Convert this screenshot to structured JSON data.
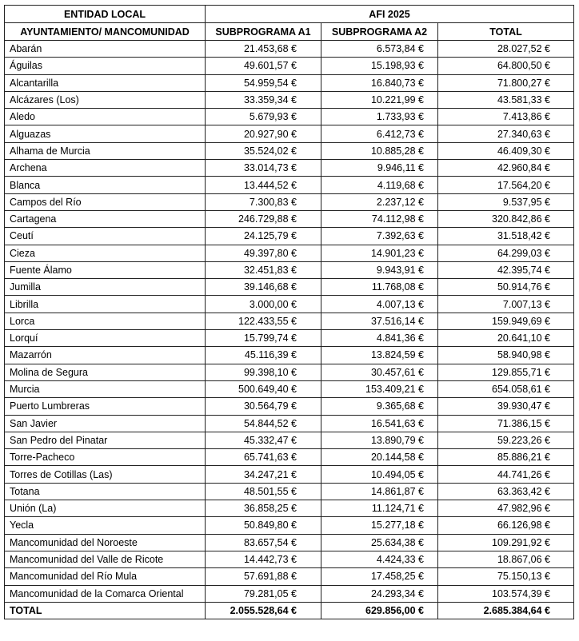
{
  "header": {
    "group_left": "ENTIDAD LOCAL",
    "group_right": "AFI 2025",
    "col_entity": "AYUNTAMIENTO/ MANCOMUNIDAD",
    "col_a1": "SUBPROGRAMA A1",
    "col_a2": "SUBPROGRAMA A2",
    "col_total": "TOTAL"
  },
  "rows": [
    {
      "name": "Abarán",
      "a1": "21.453,68 €",
      "a2": "6.573,84 €",
      "total": "28.027,52 €"
    },
    {
      "name": "Águilas",
      "a1": "49.601,57 €",
      "a2": "15.198,93 €",
      "total": "64.800,50 €"
    },
    {
      "name": "Alcantarilla",
      "a1": "54.959,54 €",
      "a2": "16.840,73 €",
      "total": "71.800,27 €"
    },
    {
      "name": "Alcázares (Los)",
      "a1": "33.359,34 €",
      "a2": "10.221,99 €",
      "total": "43.581,33 €"
    },
    {
      "name": "Aledo",
      "a1": "5.679,93 €",
      "a2": "1.733,93 €",
      "total": "7.413,86 €"
    },
    {
      "name": "Alguazas",
      "a1": "20.927,90 €",
      "a2": "6.412,73 €",
      "total": "27.340,63 €"
    },
    {
      "name": "Alhama de Murcia",
      "a1": "35.524,02 €",
      "a2": "10.885,28 €",
      "total": "46.409,30 €"
    },
    {
      "name": "Archena",
      "a1": "33.014,73 €",
      "a2": "9.946,11 €",
      "total": "42.960,84 €"
    },
    {
      "name": "Blanca",
      "a1": "13.444,52 €",
      "a2": "4.119,68 €",
      "total": "17.564,20 €"
    },
    {
      "name": "Campos del Río",
      "a1": "7.300,83 €",
      "a2": "2.237,12 €",
      "total": "9.537,95 €"
    },
    {
      "name": "Cartagena",
      "a1": "246.729,88 €",
      "a2": "74.112,98 €",
      "total": "320.842,86 €"
    },
    {
      "name": "Ceutí",
      "a1": "24.125,79 €",
      "a2": "7.392,63 €",
      "total": "31.518,42 €"
    },
    {
      "name": "Cieza",
      "a1": "49.397,80 €",
      "a2": "14.901,23 €",
      "total": "64.299,03 €"
    },
    {
      "name": "Fuente Álamo",
      "a1": "32.451,83 €",
      "a2": "9.943,91 €",
      "total": "42.395,74 €"
    },
    {
      "name": "Jumilla",
      "a1": "39.146,68 €",
      "a2": "11.768,08 €",
      "total": "50.914,76 €"
    },
    {
      "name": "Librilla",
      "a1": "3.000,00 €",
      "a2": "4.007,13 €",
      "total": "7.007,13 €"
    },
    {
      "name": "Lorca",
      "a1": "122.433,55 €",
      "a2": "37.516,14 €",
      "total": "159.949,69 €"
    },
    {
      "name": "Lorquí",
      "a1": "15.799,74 €",
      "a2": "4.841,36 €",
      "total": "20.641,10 €"
    },
    {
      "name": "Mazarrón",
      "a1": "45.116,39 €",
      "a2": "13.824,59 €",
      "total": "58.940,98 €"
    },
    {
      "name": "Molina de Segura",
      "a1": "99.398,10 €",
      "a2": "30.457,61 €",
      "total": "129.855,71 €"
    },
    {
      "name": "Murcia",
      "a1": "500.649,40 €",
      "a2": "153.409,21 €",
      "total": "654.058,61 €"
    },
    {
      "name": "Puerto Lumbreras",
      "a1": "30.564,79 €",
      "a2": "9.365,68 €",
      "total": "39.930,47 €"
    },
    {
      "name": "San Javier",
      "a1": "54.844,52 €",
      "a2": "16.541,63 €",
      "total": "71.386,15 €"
    },
    {
      "name": "San Pedro del Pinatar",
      "a1": "45.332,47 €",
      "a2": "13.890,79 €",
      "total": "59.223,26 €"
    },
    {
      "name": "Torre-Pacheco",
      "a1": "65.741,63 €",
      "a2": "20.144,58 €",
      "total": "85.886,21 €"
    },
    {
      "name": "Torres de Cotillas (Las)",
      "a1": "34.247,21 €",
      "a2": "10.494,05 €",
      "total": "44.741,26 €"
    },
    {
      "name": "Totana",
      "a1": "48.501,55 €",
      "a2": "14.861,87 €",
      "total": "63.363,42 €"
    },
    {
      "name": "Unión (La)",
      "a1": "36.858,25 €",
      "a2": "11.124,71 €",
      "total": "47.982,96 €"
    },
    {
      "name": "Yecla",
      "a1": "50.849,80 €",
      "a2": "15.277,18 €",
      "total": "66.126,98 €"
    },
    {
      "name": "Mancomunidad del Noroeste",
      "a1": "83.657,54 €",
      "a2": "25.634,38 €",
      "total": "109.291,92 €"
    },
    {
      "name": "Mancomunidad del Valle de Ricote",
      "a1": "14.442,73 €",
      "a2": "4.424,33 €",
      "total": "18.867,06 €"
    },
    {
      "name": "Mancomunidad del Río Mula",
      "a1": "57.691,88 €",
      "a2": "17.458,25 €",
      "total": "75.150,13 €"
    },
    {
      "name": "Mancomunidad de la Comarca Oriental",
      "a1": "79.281,05 €",
      "a2": "24.293,34 €",
      "total": "103.574,39 €"
    }
  ],
  "total_row": {
    "name": "TOTAL",
    "a1": "2.055.528,64 €",
    "a2": "629.856,00 €",
    "total": "2.685.384,64 €"
  }
}
